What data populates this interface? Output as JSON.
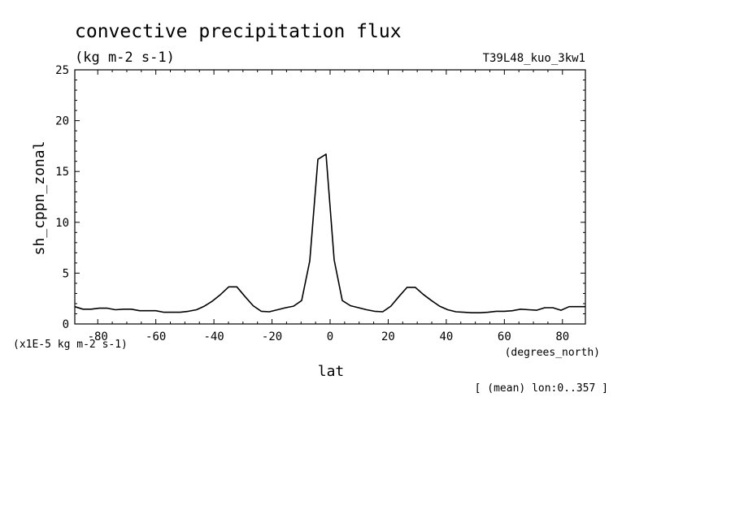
{
  "chart_data": {
    "type": "line",
    "title": "convective precipitation flux",
    "subtitle": "(kg m-2 s-1)",
    "run_label": "T39L48_kuo_3kw1",
    "ylabel": "sh_cppn_zonal",
    "xlabel": "lat",
    "x_units": "(degrees_north)",
    "y_units": "(x1E-5 kg m-2 s-1)",
    "footnote": "[ (mean) lon:0..357 ]",
    "xlim": [
      -87.9,
      87.9
    ],
    "ylim": [
      0,
      25
    ],
    "x_ticks": [
      -80,
      -60,
      -40,
      -20,
      0,
      20,
      40,
      60,
      80
    ],
    "x_tick_labels": [
      "-80",
      "-60",
      "-40",
      "-20",
      "0",
      "20",
      "40",
      "60",
      "80"
    ],
    "y_ticks": [
      0,
      5,
      10,
      15,
      20,
      25
    ],
    "y_tick_labels": [
      "0",
      "5",
      "10",
      "15",
      "20",
      "25"
    ],
    "grid": false,
    "line_color": "#000000",
    "series": [
      {
        "x": [
          -87.9,
          -85.1,
          -82.3,
          -79.5,
          -76.7,
          -73.9,
          -71.1,
          -68.4,
          -65.6,
          -62.8,
          -60.0,
          -57.2,
          -54.4,
          -51.6,
          -48.8,
          -46.0,
          -43.3,
          -40.5,
          -37.7,
          -34.9,
          -32.1,
          -29.3,
          -26.5,
          -23.7,
          -20.9,
          -18.1,
          -15.3,
          -12.6,
          -9.8,
          -7.0,
          -4.2,
          -1.4,
          1.4,
          4.2,
          7.0,
          9.8,
          12.6,
          15.3,
          18.1,
          20.9,
          23.7,
          26.5,
          29.3,
          32.1,
          34.9,
          37.7,
          40.5,
          43.3,
          46.0,
          48.8,
          51.6,
          54.4,
          57.2,
          60.0,
          62.8,
          65.6,
          68.4,
          71.1,
          73.9,
          76.7,
          79.5,
          82.3,
          85.1,
          87.9
        ],
        "y": [
          1.7,
          1.45,
          1.45,
          1.55,
          1.55,
          1.4,
          1.45,
          1.45,
          1.3,
          1.3,
          1.3,
          1.15,
          1.15,
          1.15,
          1.25,
          1.4,
          1.75,
          2.25,
          2.9,
          3.65,
          3.65,
          2.7,
          1.8,
          1.25,
          1.2,
          1.4,
          1.6,
          1.75,
          2.3,
          6.2,
          16.2,
          16.7,
          6.3,
          2.3,
          1.8,
          1.6,
          1.4,
          1.25,
          1.2,
          1.75,
          2.7,
          3.6,
          3.6,
          2.9,
          2.3,
          1.75,
          1.4,
          1.2,
          1.15,
          1.1,
          1.1,
          1.15,
          1.25,
          1.25,
          1.3,
          1.45,
          1.4,
          1.35,
          1.6,
          1.6,
          1.35,
          1.7,
          1.7,
          1.7
        ]
      }
    ]
  }
}
